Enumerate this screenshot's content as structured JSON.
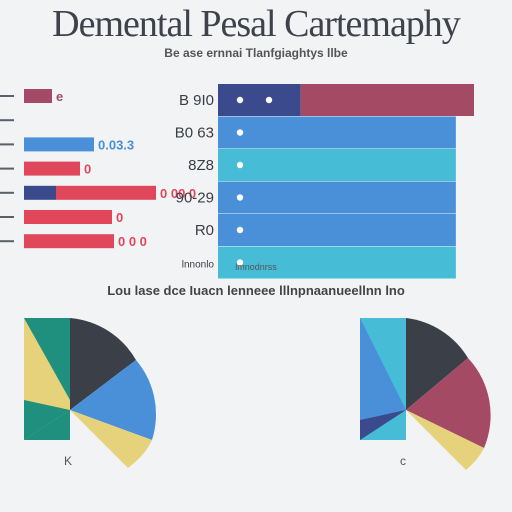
{
  "title": "Demental Pesal Cartemaphy",
  "subtitle": "Be ase ernnai Tlanfgiaghtys llbe",
  "caption_mid": "lmnodnrss",
  "caption_pies": "Lou lase dce Iuacn lenneee lllnpnaanueellnn lno",
  "colors": {
    "maroon": "#a54a64",
    "navy": "#3a4a8c",
    "blue": "#4a90d9",
    "cyan": "#46bcd6",
    "red": "#e0475b",
    "teal": "#1f8f7e",
    "yellow": "#e6d27a",
    "charcoal": "#3a3f48"
  },
  "chart_data": [
    {
      "type": "bar",
      "orientation": "horizontal",
      "categories": [
        "",
        "",
        "",
        "",
        "",
        "",
        ""
      ],
      "value_labels": [
        "e",
        "",
        "0.03.3",
        "0",
        "0 00 0",
        "0",
        "0 0 0"
      ],
      "series": [
        {
          "values": [
            28,
            0,
            70,
            56,
            100,
            88,
            64
          ]
        },
        {
          "values": [
            0,
            0,
            0,
            0,
            32,
            0,
            26
          ]
        }
      ]
    },
    {
      "type": "bar",
      "orientation": "horizontal",
      "categories": [
        "B 9I0",
        "B0 63",
        "8Z8",
        "90-29",
        "R0",
        "lnnonlo"
      ],
      "series": [
        {
          "values": [
            82,
            236,
            236,
            236,
            236,
            236
          ]
        },
        {
          "values": [
            172,
            0,
            0,
            0,
            0,
            0
          ]
        }
      ],
      "xlim": [
        0,
        254
      ]
    },
    {
      "type": "pie",
      "label": "K",
      "slices": [
        {
          "value": 16
        },
        {
          "value": 25
        },
        {
          "value": 10
        },
        {
          "value": 24
        },
        {
          "value": 25
        }
      ]
    },
    {
      "type": "pie",
      "label": "c",
      "slices": [
        {
          "value": 16
        },
        {
          "value": 25
        },
        {
          "value": 10
        },
        {
          "value": 24
        },
        {
          "value": 25
        }
      ]
    }
  ]
}
